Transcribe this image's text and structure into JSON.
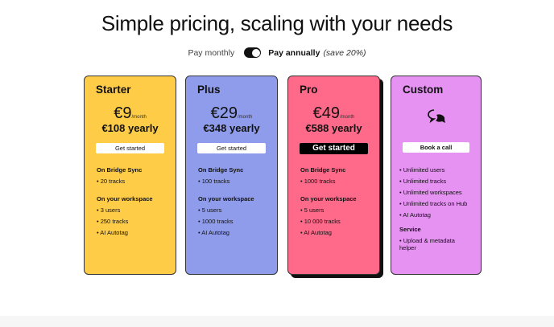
{
  "title": "Simple pricing, scaling with your needs",
  "billing": {
    "monthly": "Pay monthly",
    "annually": "Pay annually",
    "save": "(save 20%)",
    "annual_selected": true
  },
  "plans": [
    {
      "name": "Starter",
      "price": "€9",
      "per": "/month",
      "yearly": "€108 yearly",
      "cta": "Get started",
      "color": "#FFCC47",
      "sync_heading": "On Bridge Sync",
      "sync": [
        "20 tracks"
      ],
      "ws_heading": "On your workspace",
      "ws": [
        "3 users",
        "250 tracks",
        "AI Autotag"
      ]
    },
    {
      "name": "Plus",
      "price": "€29",
      "per": "/month",
      "yearly": "€348 yearly",
      "cta": "Get started",
      "color": "#8F9CEB",
      "sync_heading": "On Bridge Sync",
      "sync": [
        "100 tracks"
      ],
      "ws_heading": "On your workspace",
      "ws": [
        "5 users",
        "1000 tracks",
        "AI Autotag"
      ]
    },
    {
      "name": "Pro",
      "price": "€49",
      "per": "/month",
      "yearly": "€588 yearly",
      "cta": "Get started",
      "color": "#FF6A8A",
      "sync_heading": "On Bridge Sync",
      "sync": [
        "1000 tracks"
      ],
      "ws_heading": "On your workspace",
      "ws": [
        "5 users",
        "10 000 tracks",
        "AI Autotag"
      ]
    },
    {
      "name": "Custom",
      "icon": "chat-bubbles-icon",
      "cta": "Book a call",
      "color": "#E592F2",
      "features": [
        "Unlimited users",
        "Unlimited tracks",
        "Unlimited workspaces",
        "Unlimited tracks on Hub",
        "AI Autotag"
      ],
      "service_heading": "Service",
      "service": [
        "Upload & metadata helper"
      ]
    }
  ]
}
